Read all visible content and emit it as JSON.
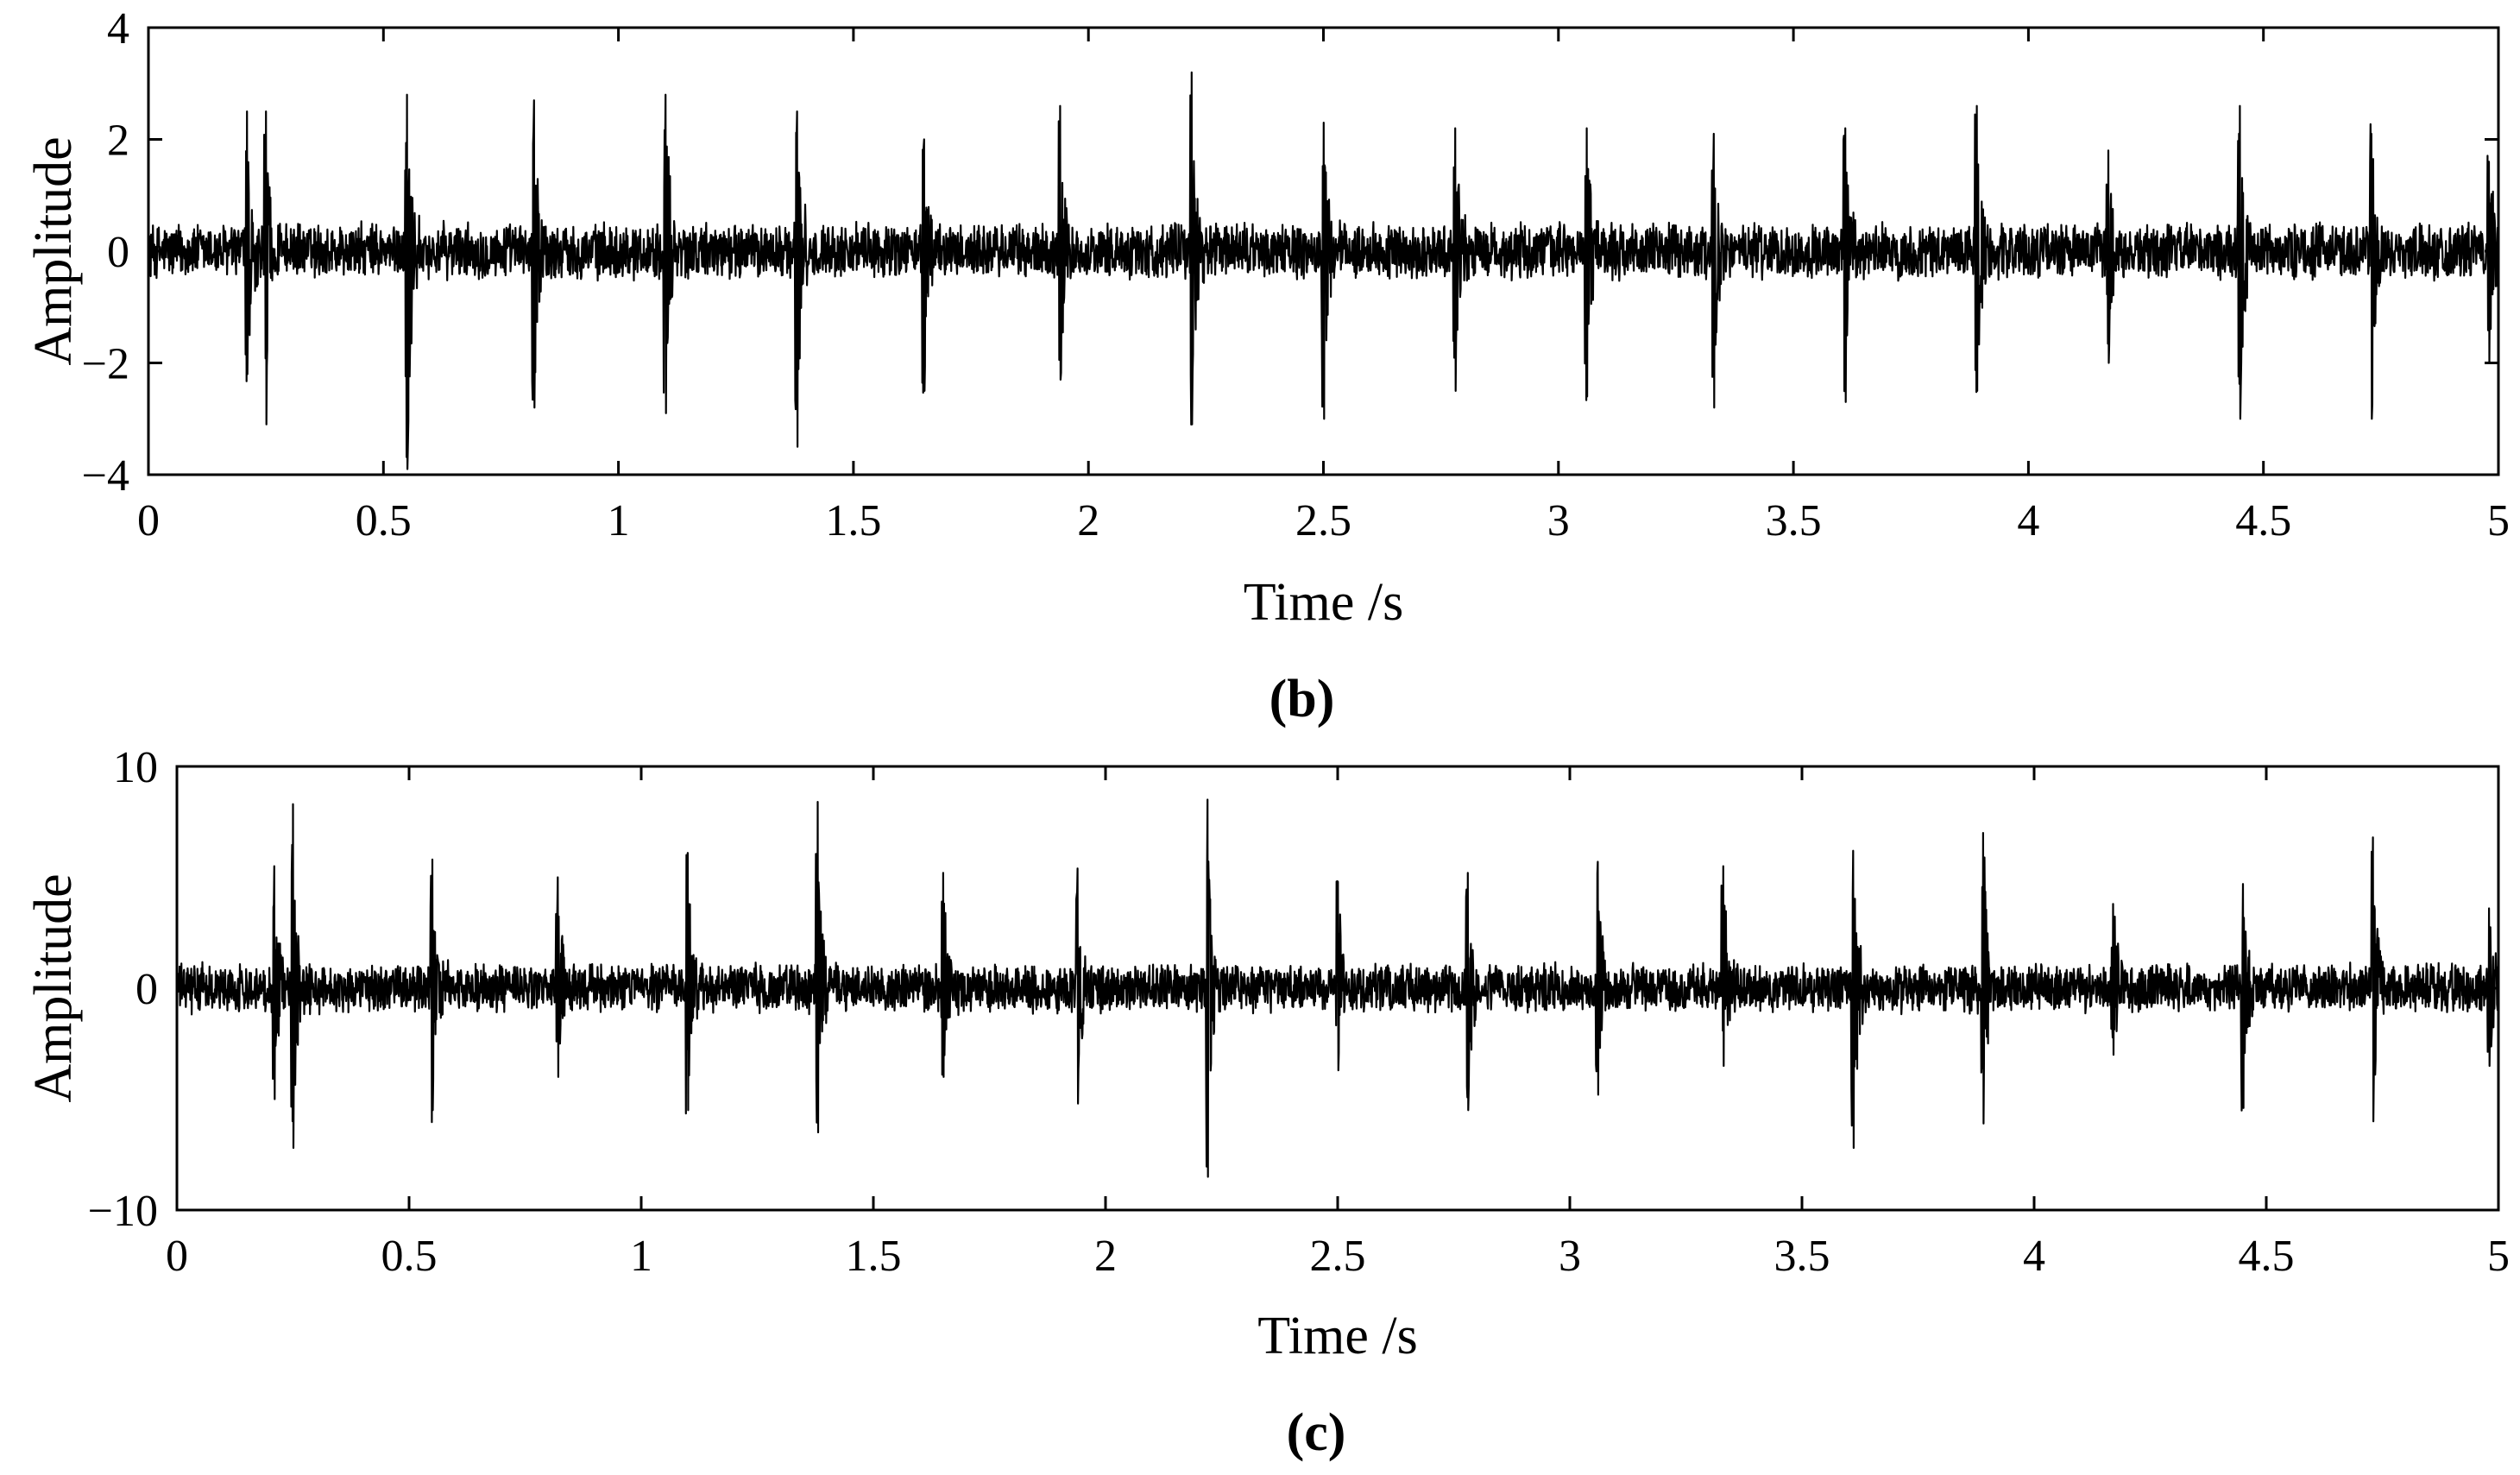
{
  "chart_data": [
    {
      "type": "line",
      "panel_label": "(b)",
      "xlabel": "Time /s",
      "ylabel": "Amplitude",
      "xlim": [
        0,
        5
      ],
      "ylim": [
        -4,
        4
      ],
      "xticks": [
        0,
        0.5,
        1,
        1.5,
        2,
        2.5,
        3,
        3.5,
        4,
        4.5,
        5
      ],
      "xtick_labels": [
        "0",
        "0.5",
        "1",
        "1.5",
        "2",
        "2.5",
        "3",
        "3.5",
        "4",
        "4.5",
        "5"
      ],
      "yticks": [
        -4,
        -2,
        0,
        2,
        4
      ],
      "ytick_labels": [
        "−4",
        "−2",
        "0",
        "2",
        "4"
      ],
      "grid": false,
      "signal": {
        "noise_amplitude": 0.55,
        "impulse_times": [
          0.21,
          0.25,
          0.55,
          0.82,
          1.1,
          1.38,
          1.65,
          1.94,
          2.22,
          2.5,
          2.78,
          3.06,
          3.33,
          3.61,
          3.89,
          4.17,
          4.45,
          4.73,
          4.98
        ],
        "impulse_peaks": [
          2.5,
          2.5,
          2.8,
          2.7,
          2.8,
          2.5,
          2.0,
          2.6,
          3.2,
          2.3,
          2.2,
          2.2,
          2.1,
          2.2,
          2.6,
          1.8,
          2.6,
          2.1,
          1.6
        ],
        "impulse_troughs": [
          -2.2,
          -3.1,
          -3.9,
          -2.8,
          -2.9,
          -3.5,
          -2.5,
          -2.3,
          -3.1,
          -3.0,
          -2.5,
          -2.6,
          -2.8,
          -2.7,
          -2.5,
          -2.0,
          -3.0,
          -3.0,
          -2.0
        ]
      }
    },
    {
      "type": "line",
      "panel_label": "(c)",
      "xlabel": "Time /s",
      "ylabel": "Amplitude",
      "xlim": [
        0,
        5
      ],
      "ylim": [
        -10,
        10
      ],
      "xticks": [
        0,
        0.5,
        1,
        1.5,
        2,
        2.5,
        3,
        3.5,
        4,
        4.5,
        5
      ],
      "xtick_labels": [
        "0",
        "0.5",
        "1",
        "1.5",
        "2",
        "2.5",
        "3",
        "3.5",
        "4",
        "4.5",
        "5"
      ],
      "yticks": [
        -10,
        0,
        10
      ],
      "ytick_labels": [
        "−10",
        "0",
        "10"
      ],
      "grid": false,
      "signal": {
        "noise_amplitude": 1.2,
        "impulse_times": [
          0.21,
          0.25,
          0.55,
          0.82,
          1.1,
          1.38,
          1.65,
          1.94,
          2.22,
          2.5,
          2.78,
          3.06,
          3.33,
          3.61,
          3.89,
          4.17,
          4.45,
          4.73,
          4.98
        ],
        "impulse_peaks": [
          5.5,
          8.3,
          5.8,
          5.0,
          6.1,
          8.4,
          5.2,
          5.4,
          8.5,
          4.8,
          5.2,
          5.7,
          5.5,
          6.2,
          7.0,
          3.8,
          4.7,
          6.8,
          3.6
        ],
        "impulse_troughs": [
          -5.0,
          -7.2,
          -5.5,
          -4.0,
          -5.5,
          -6.5,
          -4.0,
          -5.2,
          -8.5,
          -3.7,
          -5.5,
          -4.8,
          -3.5,
          -7.2,
          -6.1,
          -3.0,
          -5.4,
          -6.0,
          -3.5
        ]
      }
    }
  ]
}
